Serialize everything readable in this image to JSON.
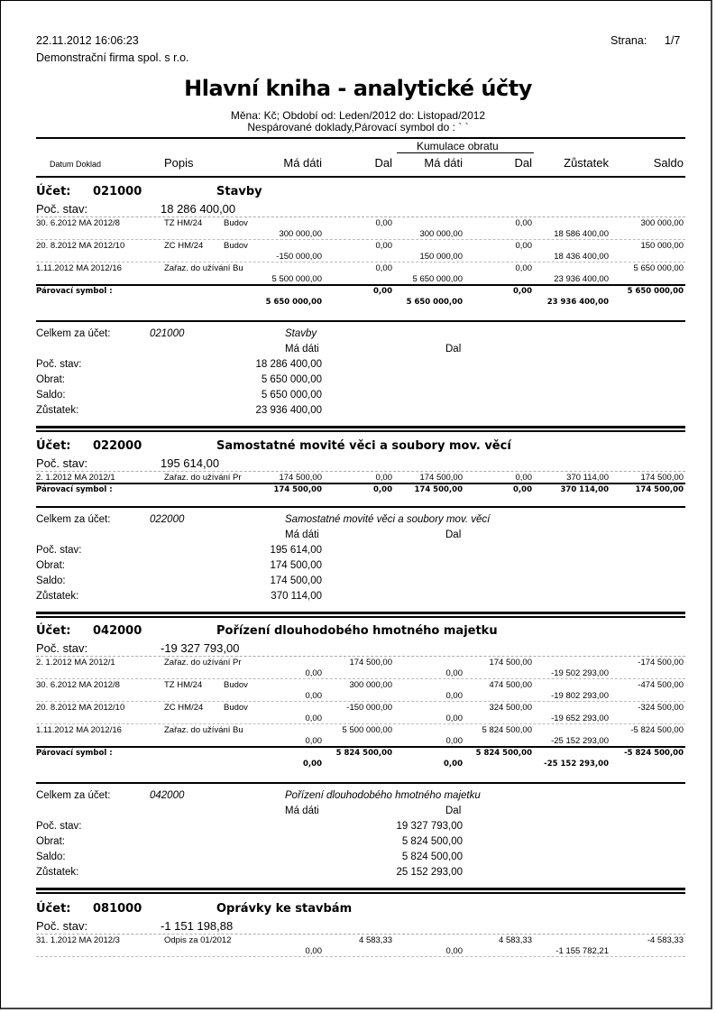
{
  "header": {
    "datetime": "22.11.2012 16:06:23",
    "page_label": "Strana:",
    "page": "1/7",
    "company": "Demonstrační firma spol. s r.o.",
    "title": "Hlavní kniha - analytické účty",
    "subtitle1": "Měna: Kč; Období od: Leden/2012 do: Listopad/2012",
    "subtitle2": "Nespárované doklady,Párovací symbol do : ` `"
  },
  "columns": {
    "date_doc": "Datum Doklad",
    "popis": "Popis",
    "md": "Má dáti",
    "dal": "Dal",
    "cumulation": "Kumulace obratu",
    "cmd": "Má dáti",
    "cdal": "Dal",
    "zust": "Zůstatek",
    "saldo": "Saldo"
  },
  "labels": {
    "account": "Účet:",
    "poc": "Poč. stav:",
    "pairing": "Párovací symbol :",
    "total_for": "Celkem za účet:",
    "md": "Má dáti",
    "dal": "Dal",
    "s_poc": "Poč. stav:",
    "s_obrat": "Obrat:",
    "s_saldo": "Saldo:",
    "s_zust": "Zůstatek:"
  },
  "accounts": [
    {
      "number": "021000",
      "name": "Stavby",
      "poc": "18 286 400,00",
      "rows": [
        {
          "date_doc": "30. 6.2012 MA 2012/8",
          "popis": "TZ HM/24",
          "desc": "Budov",
          "md": "300 000,00",
          "dal": "0,00",
          "cmd": "300 000,00",
          "cdal": "0,00",
          "zust": "18 586 400,00",
          "saldo": "300 000,00"
        },
        {
          "date_doc": "20. 8.2012 MA 2012/10",
          "popis": "ZC HM/24",
          "desc": "Budov",
          "md": "-150 000,00",
          "dal": "0,00",
          "cmd": "150 000,00",
          "cdal": "0,00",
          "zust": "18 436 400,00",
          "saldo": "150 000,00"
        },
        {
          "date_doc": "1.11.2012 MA 2012/16",
          "popis": "Zařaz. do užívání Bu",
          "desc": "",
          "md": "5 500 000,00",
          "dal": "0,00",
          "cmd": "5 650 000,00",
          "cdal": "0,00",
          "zust": "23 936 400,00",
          "saldo": "5 650 000,00"
        }
      ],
      "pairing": {
        "md": "5 650 000,00",
        "dal": "0,00",
        "cmd": "5 650 000,00",
        "cdal": "0,00",
        "zust": "23 936 400,00",
        "saldo": "5 650 000,00"
      },
      "summary": {
        "side": "Má dáti",
        "poc": "18 286 400,00",
        "obrat": "5 650 000,00",
        "saldo": "5 650 000,00",
        "zust": "23 936 400,00"
      }
    },
    {
      "number": "022000",
      "name": "Samostatné movité věci a soubory mov. věcí",
      "poc": "195 614,00",
      "rows": [
        {
          "date_doc": "2. 1.2012 MA 2012/1",
          "popis": "Zařaz. do užívání Pr",
          "desc": "",
          "md": "174 500,00",
          "dal": "0,00",
          "cmd": "174 500,00",
          "cdal": "0,00",
          "zust": "370 114,00",
          "saldo": "174 500,00"
        }
      ],
      "pairing": {
        "md": "174 500,00",
        "dal": "0,00",
        "cmd": "174 500,00",
        "cdal": "0,00",
        "zust": "370 114,00",
        "saldo": "174 500,00"
      },
      "summary": {
        "side": "Má dáti",
        "poc": "195 614,00",
        "obrat": "174 500,00",
        "saldo": "174 500,00",
        "zust": "370 114,00"
      }
    },
    {
      "number": "042000",
      "name": "Pořízení dlouhodobého hmotného majetku",
      "poc": "-19 327 793,00",
      "rows": [
        {
          "date_doc": "2. 1.2012 MA 2012/1",
          "popis": "Zařaz. do užívání Pr",
          "desc": "",
          "md": "0,00",
          "dal": "174 500,00",
          "cmd": "0,00",
          "cdal": "174 500,00",
          "zust": "-19 502 293,00",
          "saldo": "-174 500,00"
        },
        {
          "date_doc": "30. 6.2012 MA 2012/8",
          "popis": "TZ HM/24",
          "desc": "Budov",
          "md": "0,00",
          "dal": "300 000,00",
          "cmd": "0,00",
          "cdal": "474 500,00",
          "zust": "-19 802 293,00",
          "saldo": "-474 500,00"
        },
        {
          "date_doc": "20. 8.2012 MA 2012/10",
          "popis": "ZC HM/24",
          "desc": "Budov",
          "md": "0,00",
          "dal": "-150 000,00",
          "cmd": "0,00",
          "cdal": "324 500,00",
          "zust": "-19 652 293,00",
          "saldo": "-324 500,00"
        },
        {
          "date_doc": "1.11.2012 MA 2012/16",
          "popis": "Zařaz. do užívání Bu",
          "desc": "",
          "md": "0,00",
          "dal": "5 500 000,00",
          "cmd": "0,00",
          "cdal": "5 824 500,00",
          "zust": "-25 152 293,00",
          "saldo": "-5 824 500,00"
        }
      ],
      "pairing": {
        "md": "0,00",
        "dal": "5 824 500,00",
        "cmd": "0,00",
        "cdal": "5 824 500,00",
        "zust": "-25 152 293,00",
        "saldo": "-5 824 500,00"
      },
      "summary": {
        "side": "Dal",
        "poc": "19 327 793,00",
        "obrat": "5 824 500,00",
        "saldo": "5 824 500,00",
        "zust": "25 152 293,00"
      }
    },
    {
      "number": "081000",
      "name": "Oprávky ke stavbám",
      "poc": "-1 151 198,88",
      "rows": [
        {
          "date_doc": "31. 1.2012 MA 2012/3",
          "popis": "Odpis za 01/2012",
          "desc": "",
          "md": "0,00",
          "dal": "4 583,33",
          "cmd": "0,00",
          "cdal": "4 583,33",
          "zust": "-1 155 782,21",
          "saldo": "-4 583,33"
        }
      ]
    }
  ]
}
